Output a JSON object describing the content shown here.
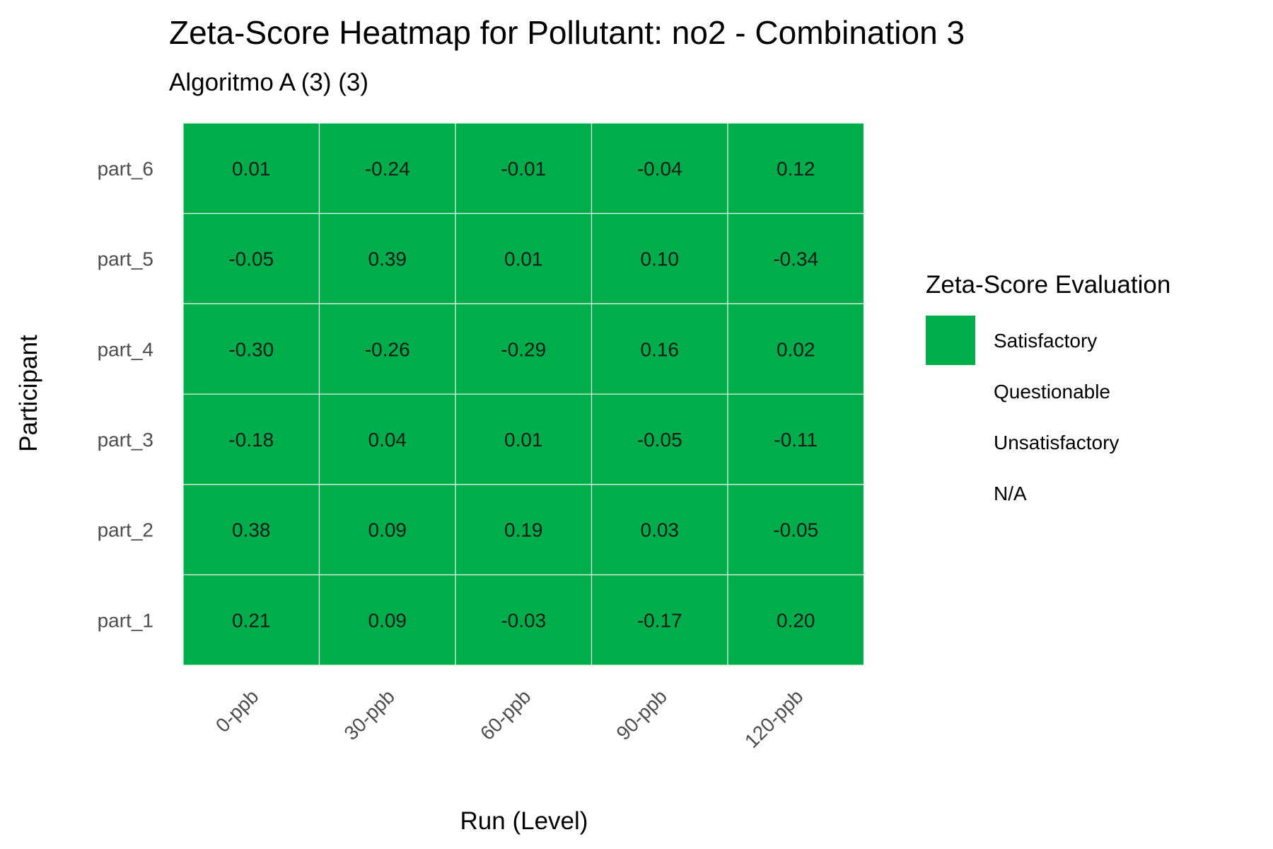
{
  "chart_data": {
    "type": "heatmap",
    "title": "Zeta-Score Heatmap for Pollutant: no2 - Combination 3",
    "subtitle": "Algoritmo A (3) (3)",
    "xlabel": "Run (Level)",
    "ylabel": "Participant",
    "x_categories": [
      "0-ppb",
      "30-ppb",
      "60-ppb",
      "90-ppb",
      "120-ppb"
    ],
    "y_categories": [
      "part_6",
      "part_5",
      "part_4",
      "part_3",
      "part_2",
      "part_1"
    ],
    "values": [
      [
        "0.01",
        "-0.24",
        "-0.01",
        "-0.04",
        "0.12"
      ],
      [
        "-0.05",
        "0.39",
        "0.01",
        "0.10",
        "-0.34"
      ],
      [
        "-0.30",
        "-0.26",
        "-0.29",
        "0.16",
        "0.02"
      ],
      [
        "-0.18",
        "0.04",
        "0.01",
        "-0.05",
        "-0.11"
      ],
      [
        "0.38",
        "0.09",
        "0.19",
        "0.03",
        "-0.05"
      ],
      [
        "0.21",
        "0.09",
        "-0.03",
        "-0.17",
        "0.20"
      ]
    ],
    "categories_grid": [
      [
        "Satisfactory",
        "Satisfactory",
        "Satisfactory",
        "Satisfactory",
        "Satisfactory"
      ],
      [
        "Satisfactory",
        "Satisfactory",
        "Satisfactory",
        "Satisfactory",
        "Satisfactory"
      ],
      [
        "Satisfactory",
        "Satisfactory",
        "Satisfactory",
        "Satisfactory",
        "Satisfactory"
      ],
      [
        "Satisfactory",
        "Satisfactory",
        "Satisfactory",
        "Satisfactory",
        "Satisfactory"
      ],
      [
        "Satisfactory",
        "Satisfactory",
        "Satisfactory",
        "Satisfactory",
        "Satisfactory"
      ],
      [
        "Satisfactory",
        "Satisfactory",
        "Satisfactory",
        "Satisfactory",
        "Satisfactory"
      ]
    ],
    "legend": {
      "title": "Zeta-Score Evaluation",
      "position": "right",
      "entries": [
        {
          "label": "Satisfactory",
          "color": "#00ad4b"
        },
        {
          "label": "Questionable",
          "color": null
        },
        {
          "label": "Unsatisfactory",
          "color": null
        },
        {
          "label": "N/A",
          "color": null
        }
      ]
    },
    "colors": {
      "Satisfactory": "#00ad4b",
      "cell_border": "#e6f5ec"
    },
    "grid": false
  }
}
